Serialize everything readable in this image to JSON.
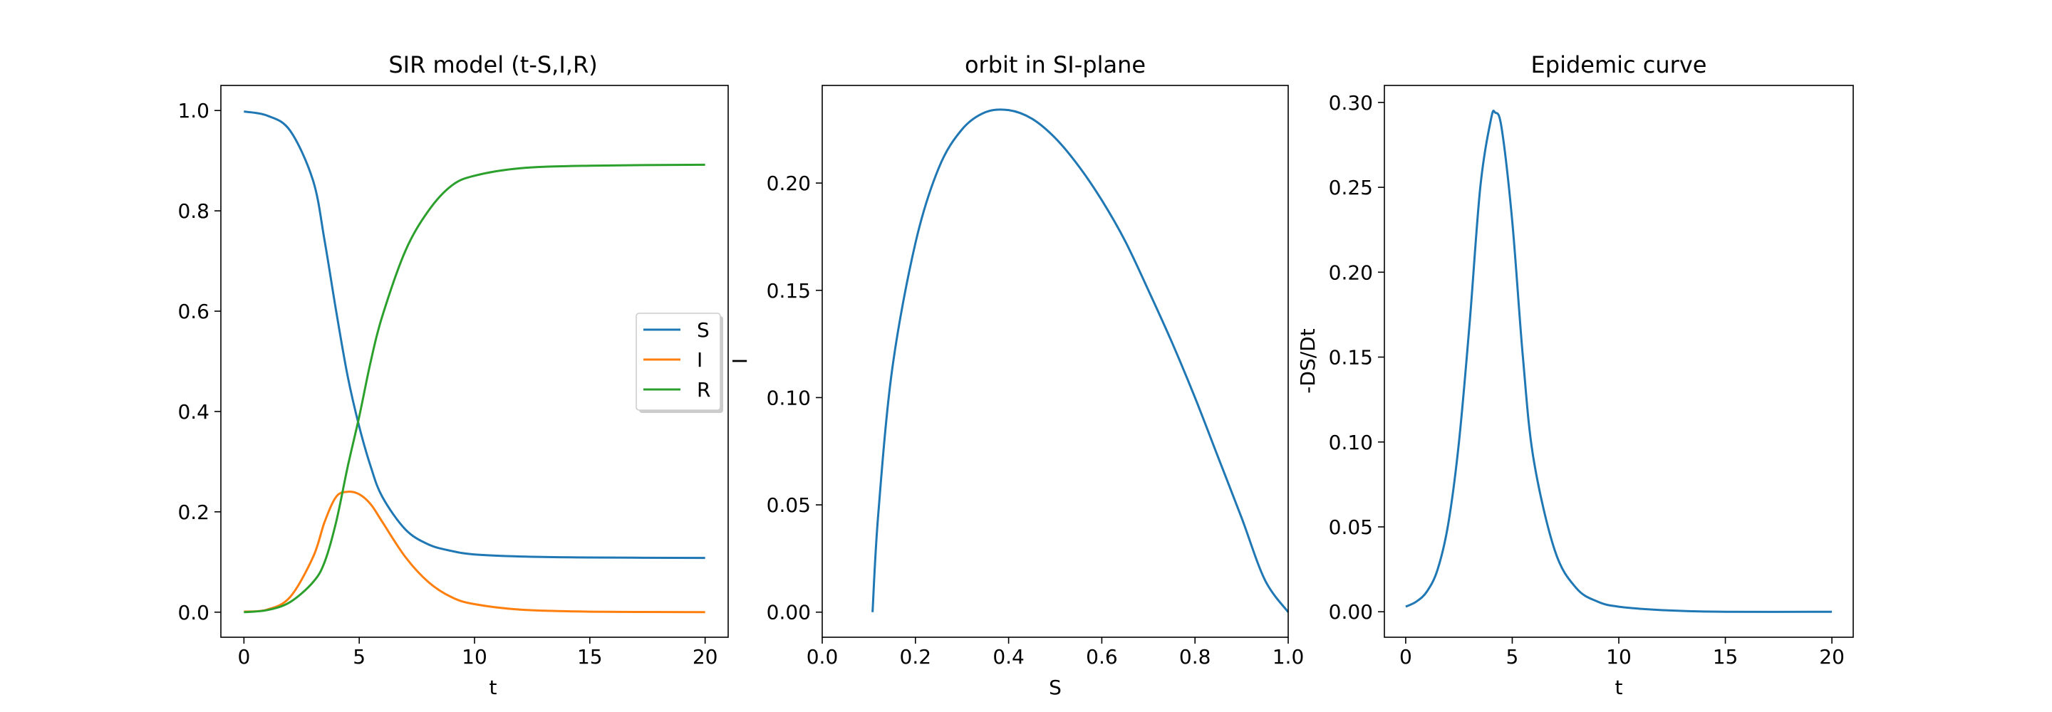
{
  "chart_data": [
    {
      "type": "line",
      "title": "SIR model (t-S,I,R)",
      "xlabel": "t",
      "ylabel": "",
      "xlim": [
        -1,
        21
      ],
      "ylim": [
        -0.05,
        1.05
      ],
      "xticks": [
        0,
        5,
        10,
        15,
        20
      ],
      "yticks": [
        0.0,
        0.2,
        0.4,
        0.6,
        0.8,
        1.0
      ],
      "xtick_labels": [
        "0",
        "5",
        "10",
        "15",
        "20"
      ],
      "ytick_labels": [
        "0.0",
        "0.2",
        "0.4",
        "0.6",
        "0.8",
        "1.0"
      ],
      "legend": {
        "placement": "center-right",
        "entries": [
          "S",
          "I",
          "R"
        ]
      },
      "grid": false,
      "x": [
        0,
        1,
        2,
        3,
        3.5,
        4,
        4.5,
        5,
        5.5,
        6,
        7,
        8,
        9,
        10,
        12,
        15,
        20
      ],
      "series": [
        {
          "name": "S",
          "color": "#1f77b4",
          "values": [
            0.998,
            0.99,
            0.96,
            0.86,
            0.74,
            0.6,
            0.47,
            0.37,
            0.29,
            0.23,
            0.165,
            0.135,
            0.122,
            0.115,
            0.111,
            0.109,
            0.108
          ]
        },
        {
          "name": "I",
          "color": "#ff7f0e",
          "values": [
            0.001,
            0.005,
            0.03,
            0.11,
            0.18,
            0.23,
            0.24,
            0.235,
            0.215,
            0.18,
            0.11,
            0.06,
            0.03,
            0.016,
            0.005,
            0.001,
            0.0
          ]
        },
        {
          "name": "R",
          "color": "#2ca02c",
          "values": [
            0.0,
            0.004,
            0.02,
            0.06,
            0.1,
            0.18,
            0.29,
            0.39,
            0.5,
            0.59,
            0.72,
            0.8,
            0.85,
            0.87,
            0.885,
            0.89,
            0.892
          ]
        }
      ]
    },
    {
      "type": "line",
      "title": "orbit in SI-plane",
      "xlabel": "S",
      "ylabel": "I",
      "xlim": [
        0.0,
        1.0
      ],
      "ylim": [
        -0.0117,
        0.2455
      ],
      "xticks": [
        0.0,
        0.2,
        0.4,
        0.6,
        0.8,
        1.0
      ],
      "yticks": [
        0.0,
        0.05,
        0.1,
        0.15,
        0.2
      ],
      "xtick_labels": [
        "0.0",
        "0.2",
        "0.4",
        "0.6",
        "0.8",
        "1.0"
      ],
      "ytick_labels": [
        "0.00",
        "0.05",
        "0.10",
        "0.15",
        "0.20"
      ],
      "grid": false,
      "series": [
        {
          "color": "#1f77b4",
          "x": [
            0.108,
            0.12,
            0.15,
            0.2,
            0.25,
            0.3,
            0.35,
            0.4,
            0.45,
            0.5,
            0.55,
            0.6,
            0.65,
            0.7,
            0.75,
            0.8,
            0.85,
            0.9,
            0.95,
            1.0
          ],
          "values": [
            0.0,
            0.045,
            0.113,
            0.172,
            0.207,
            0.225,
            0.233,
            0.234,
            0.23,
            0.221,
            0.208,
            0.192,
            0.173,
            0.15,
            0.126,
            0.1,
            0.072,
            0.044,
            0.015,
            0.0
          ]
        }
      ]
    },
    {
      "type": "line",
      "title": "Epidemic curve",
      "xlabel": "t",
      "ylabel": "-DS/Dt",
      "xlim": [
        -1,
        21
      ],
      "ylim": [
        -0.015,
        0.31
      ],
      "xticks": [
        0,
        5,
        10,
        15,
        20
      ],
      "yticks": [
        0.0,
        0.05,
        0.1,
        0.15,
        0.2,
        0.25,
        0.3
      ],
      "xtick_labels": [
        "0",
        "5",
        "10",
        "15",
        "20"
      ],
      "ytick_labels": [
        "0.00",
        "0.05",
        "0.10",
        "0.15",
        "0.20",
        "0.25",
        "0.30"
      ],
      "grid": false,
      "series": [
        {
          "color": "#1f77b4",
          "x": [
            0,
            0.5,
            1,
            1.5,
            2,
            2.5,
            3,
            3.5,
            4,
            4.2,
            4.5,
            5,
            5.5,
            6,
            7,
            8,
            9,
            10,
            12,
            15,
            20
          ],
          "values": [
            0.003,
            0.006,
            0.012,
            0.025,
            0.052,
            0.1,
            0.17,
            0.25,
            0.29,
            0.294,
            0.285,
            0.23,
            0.15,
            0.09,
            0.036,
            0.014,
            0.006,
            0.003,
            0.001,
            0.0,
            0.0
          ]
        }
      ]
    }
  ]
}
